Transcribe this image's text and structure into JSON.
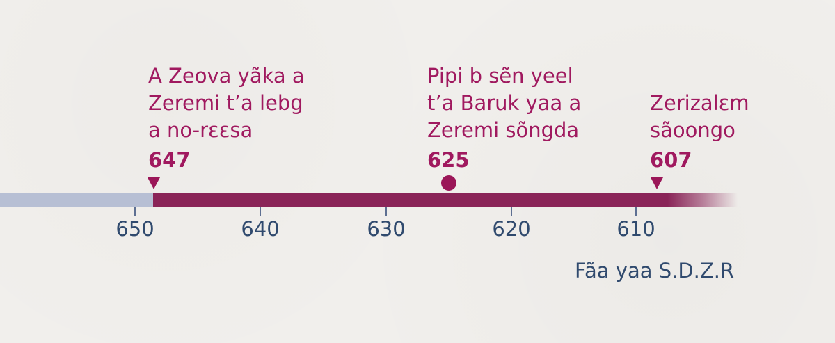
{
  "events": [
    {
      "label": "A Zeova yãka a\nZeremi t’a lebg\na no-rɛɛsa",
      "year": "647",
      "marker": "triangle-down"
    },
    {
      "label": "Pipi b sẽn yeel\nt’a Baruk yaa a\nZeremi sõngda",
      "year": "625",
      "marker": "dot"
    },
    {
      "label": "Zerizalɛm\nsãoongo",
      "year": "607",
      "marker": "triangle-down"
    }
  ],
  "axis": {
    "ticks": [
      "650",
      "640",
      "630",
      "620",
      "610"
    ],
    "caption": "Fãa yaa S.D.Z.R"
  },
  "colors": {
    "accent": "#a0195f",
    "timeline_bar": "#8a2458",
    "timeline_before": "#b7bfd4",
    "axis_text": "#304a6e",
    "background": "#f1efec"
  }
}
